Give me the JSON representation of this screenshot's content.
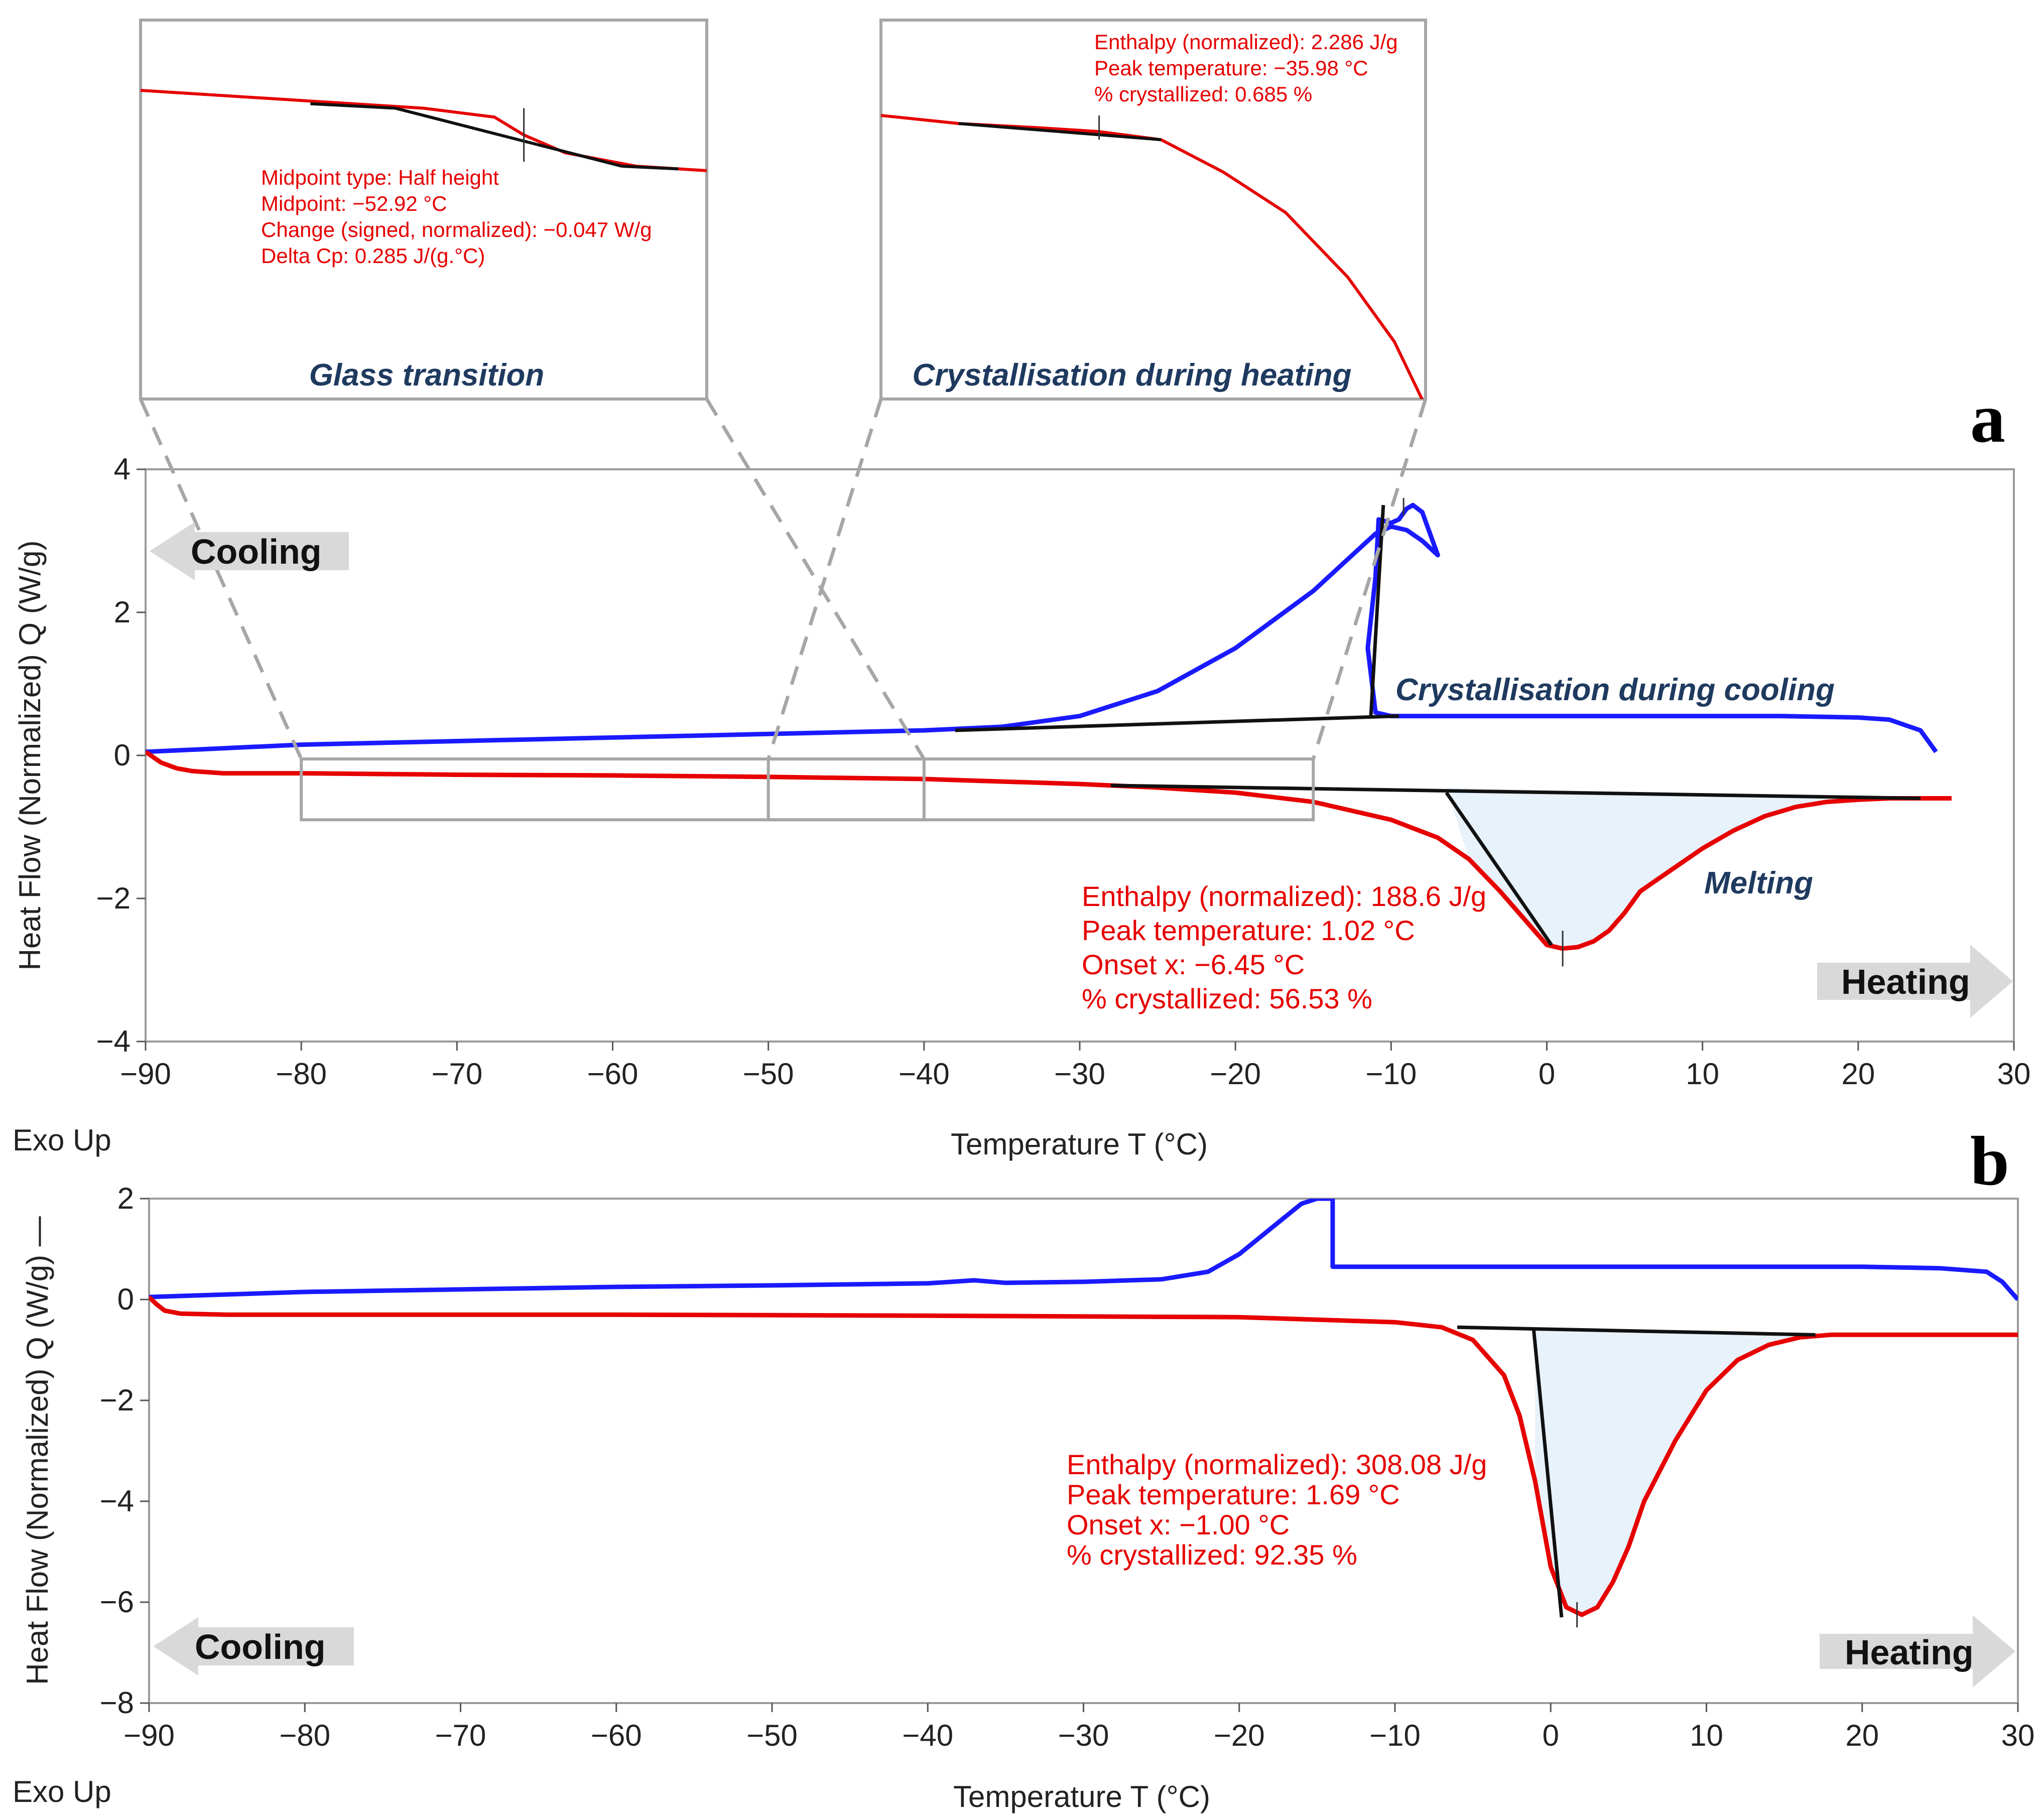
{
  "colors": {
    "cooling": "#1a1aff",
    "heating": "#e60000",
    "baseline": "#111111",
    "fill": "#e8f2fb",
    "frame": "#a6a6a6",
    "caption": "#1f3a5f"
  },
  "axes": {
    "xlabel": "Temperature T (°C)",
    "ylabel": "Heat Flow (Normalized)  Q  (W/g)",
    "ylabel_b": "Heat Flow (Normalized)  Q  (W/g) —",
    "exo": "Exo Up"
  },
  "arrows": {
    "cooling": "Cooling",
    "heating": "Heating"
  },
  "chart_data": [
    {
      "panel": "a",
      "type": "line",
      "xlabel": "Temperature T (°C)",
      "ylabel": "Heat Flow (Normalized) Q (W/g)",
      "xlim": [
        -90,
        30
      ],
      "ylim": [
        -4,
        4
      ],
      "xticks": [
        "−90",
        "−80",
        "−70",
        "−60",
        "−50",
        "−40",
        "−30",
        "−20",
        "−10",
        "0",
        "10",
        "20",
        "30"
      ],
      "yticks": [
        "−4",
        "−2",
        "0",
        "2",
        "4"
      ],
      "series": [
        {
          "name": "cooling",
          "x": [
            -90,
            -80,
            -70,
            -60,
            -50,
            -40,
            -35,
            -30,
            -25,
            -20,
            -15,
            -12,
            -11,
            -10,
            -9,
            -8,
            -7.5,
            -7,
            -7.5,
            -8,
            -8.6,
            -9,
            -9.5,
            -10,
            -10.8,
            -11,
            -11.5,
            -11,
            -10,
            -5,
            0,
            5,
            10,
            15,
            20,
            22,
            24,
            25
          ],
          "y": [
            0.05,
            0.15,
            0.2,
            0.25,
            0.3,
            0.35,
            0.4,
            0.55,
            0.9,
            1.5,
            2.3,
            2.9,
            3.1,
            3.2,
            3.15,
            3.0,
            2.9,
            2.8,
            3.1,
            3.4,
            3.5,
            3.45,
            3.3,
            3.25,
            3.3,
            2.5,
            1.5,
            0.6,
            0.55,
            0.55,
            0.55,
            0.55,
            0.55,
            0.55,
            0.53,
            0.5,
            0.35,
            0.05
          ]
        },
        {
          "name": "heating",
          "x": [
            -90,
            -89,
            -88,
            -87,
            -85,
            -80,
            -70,
            -60,
            -50,
            -40,
            -30,
            -25,
            -20,
            -15,
            -10,
            -7,
            -5,
            -3,
            -1,
            0,
            1,
            2,
            3,
            4,
            5,
            6,
            8,
            10,
            12,
            14,
            16,
            18,
            20,
            22,
            24,
            26
          ],
          "y": [
            0.05,
            -0.1,
            -0.18,
            -0.22,
            -0.25,
            -0.25,
            -0.27,
            -0.28,
            -0.3,
            -0.33,
            -0.4,
            -0.45,
            -0.52,
            -0.65,
            -0.9,
            -1.15,
            -1.45,
            -1.9,
            -2.4,
            -2.65,
            -2.7,
            -2.68,
            -2.6,
            -2.45,
            -2.2,
            -1.9,
            -1.6,
            -1.3,
            -1.05,
            -0.85,
            -0.72,
            -0.65,
            -0.62,
            -0.6,
            -0.6,
            -0.6
          ]
        }
      ],
      "annotations": {
        "melting": [
          "Enthalpy (normalized): 188.6 J/g",
          "Peak temperature: 1.02 °C",
          "Onset x: −6.45 °C",
          "% crystallized: 56.53 %"
        ],
        "labels": {
          "melting": "Melting",
          "crystallisation_cooling": "Crystallisation during cooling"
        }
      },
      "zoom_boxes": [
        {
          "name": "Glass transition",
          "x_range": [
            -80,
            -40
          ]
        },
        {
          "name": "Crystallisation during heating",
          "x_range": [
            -50,
            -15
          ]
        }
      ]
    },
    {
      "panel": "a-inset-glass",
      "type": "line",
      "title": "Glass transition",
      "x": [
        -80,
        -70,
        -60,
        -55,
        -52.92,
        -50,
        -45,
        -40
      ],
      "y": [
        -0.25,
        -0.26,
        -0.27,
        -0.28,
        -0.3,
        -0.32,
        -0.335,
        -0.34
      ],
      "annotations": [
        "Midpoint type: Half height",
        "Midpoint: −52.92 °C",
        "Change (signed, normalized): −0.047 W/g",
        "Delta Cp: 0.285 J/(g.°C)"
      ]
    },
    {
      "panel": "a-inset-crystallisation",
      "type": "line",
      "title": "Crystallisation during heating",
      "x": [
        -50,
        -45,
        -40,
        -35.98,
        -32,
        -28,
        -24,
        -20,
        -17,
        -15
      ],
      "y": [
        -0.3,
        -0.31,
        -0.315,
        -0.32,
        -0.33,
        -0.37,
        -0.42,
        -0.5,
        -0.58,
        -0.66
      ],
      "annotations": [
        "Enthalpy (normalized): 2.286 J/g",
        "Peak temperature: −35.98 °C",
        "% crystallized: 0.685 %"
      ]
    },
    {
      "panel": "b",
      "type": "line",
      "xlabel": "Temperature T (°C)",
      "ylabel": "Heat Flow (Normalized) Q (W/g)",
      "xlim": [
        -90,
        30
      ],
      "ylim": [
        -8,
        2
      ],
      "xticks": [
        "−90",
        "−80",
        "−70",
        "−60",
        "−50",
        "−40",
        "−30",
        "−20",
        "−10",
        "0",
        "10",
        "20",
        "30"
      ],
      "yticks": [
        "−8",
        "−6",
        "−4",
        "−2",
        "0",
        "2"
      ],
      "series": [
        {
          "name": "cooling",
          "x": [
            -90,
            -80,
            -70,
            -60,
            -50,
            -40,
            -37,
            -35,
            -30,
            -25,
            -22,
            -20,
            -18,
            -16,
            -15,
            -14,
            -14,
            -10,
            0,
            10,
            20,
            25,
            28,
            29,
            30
          ],
          "y": [
            0.05,
            0.15,
            0.2,
            0.25,
            0.28,
            0.32,
            0.38,
            0.33,
            0.35,
            0.4,
            0.55,
            0.9,
            1.4,
            1.9,
            2.0,
            2.0,
            0.65,
            0.65,
            0.65,
            0.65,
            0.65,
            0.62,
            0.55,
            0.35,
            0.0
          ]
        },
        {
          "name": "heating",
          "x": [
            -90,
            -89.5,
            -89,
            -88,
            -85,
            -80,
            -60,
            -40,
            -20,
            -10,
            -7,
            -5,
            -3,
            -2,
            -1,
            0,
            1,
            2,
            3,
            4,
            5,
            6,
            8,
            10,
            12,
            14,
            16,
            18,
            20,
            25,
            30
          ],
          "y": [
            0.05,
            -0.1,
            -0.22,
            -0.28,
            -0.3,
            -0.3,
            -0.3,
            -0.32,
            -0.35,
            -0.45,
            -0.55,
            -0.8,
            -1.5,
            -2.3,
            -3.6,
            -5.3,
            -6.1,
            -6.25,
            -6.1,
            -5.6,
            -4.9,
            -4.0,
            -2.8,
            -1.8,
            -1.2,
            -0.9,
            -0.75,
            -0.7,
            -0.7,
            -0.7,
            -0.7
          ]
        }
      ],
      "annotations": {
        "melting": [
          "Enthalpy (normalized): 308.08 J/g",
          "Peak temperature: 1.69 °C",
          "Onset x: −1.00 °C",
          "% crystallized: 92.35 %"
        ]
      }
    }
  ]
}
